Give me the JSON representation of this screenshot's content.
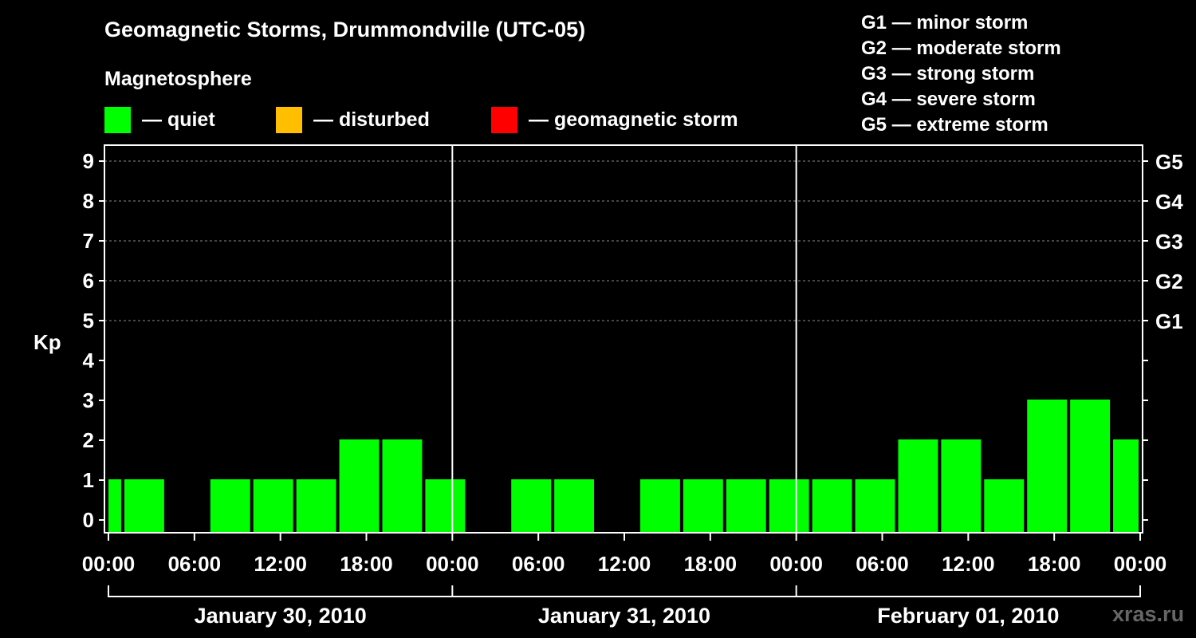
{
  "header": {
    "title": "Geomagnetic Storms, Drummondville (UTC-05)",
    "subtitle": "Magnetosphere"
  },
  "legend": {
    "quiet": {
      "label": "— quiet",
      "color": "#00ff00"
    },
    "disturbed": {
      "label": "— disturbed",
      "color": "#ffbf00"
    },
    "storm": {
      "label": "— geomagnetic storm",
      "color": "#ff0000"
    }
  },
  "storm_levels": [
    "G1 — minor storm",
    "G2 — moderate storm",
    "G3 — strong storm",
    "G4 — severe storm",
    "G5 — extreme storm"
  ],
  "watermark": "xras.ru",
  "chart_data": {
    "type": "bar",
    "title": "Geomagnetic Storms, Drummondville (UTC-05)",
    "ylabel": "Kp",
    "xlabel": "",
    "ylim": [
      0,
      9
    ],
    "y_ticks": [
      0,
      1,
      2,
      3,
      4,
      5,
      6,
      7,
      8,
      9
    ],
    "right_axis_labels": [
      {
        "y": 5,
        "label": "G1"
      },
      {
        "y": 6,
        "label": "G2"
      },
      {
        "y": 7,
        "label": "G3"
      },
      {
        "y": 8,
        "label": "G4"
      },
      {
        "y": 9,
        "label": "G5"
      }
    ],
    "grid_dashed_at": [
      5,
      6,
      7,
      8,
      9
    ],
    "x_hours_range": [
      0,
      72
    ],
    "x_ticks": [
      {
        "hour": 0,
        "label": "00:00"
      },
      {
        "hour": 6,
        "label": "06:00"
      },
      {
        "hour": 12,
        "label": "12:00"
      },
      {
        "hour": 18,
        "label": "18:00"
      },
      {
        "hour": 24,
        "label": "00:00"
      },
      {
        "hour": 30,
        "label": "06:00"
      },
      {
        "hour": 36,
        "label": "12:00"
      },
      {
        "hour": 42,
        "label": "18:00"
      },
      {
        "hour": 48,
        "label": "00:00"
      },
      {
        "hour": 54,
        "label": "06:00"
      },
      {
        "hour": 60,
        "label": "12:00"
      },
      {
        "hour": 66,
        "label": "18:00"
      },
      {
        "hour": 72,
        "label": "00:00"
      }
    ],
    "day_separators_hours": [
      24,
      48
    ],
    "days": [
      {
        "label": "January 30, 2010",
        "start": 0,
        "end": 24
      },
      {
        "label": "January 31, 2010",
        "start": 24,
        "end": 48
      },
      {
        "label": "February 01, 2010",
        "start": 48,
        "end": 72
      }
    ],
    "bars": [
      {
        "start": 0,
        "end": 1,
        "kp": 1
      },
      {
        "start": 1,
        "end": 4,
        "kp": 1
      },
      {
        "start": 4,
        "end": 7,
        "kp": 0
      },
      {
        "start": 7,
        "end": 10,
        "kp": 1
      },
      {
        "start": 10,
        "end": 13,
        "kp": 1
      },
      {
        "start": 13,
        "end": 16,
        "kp": 1
      },
      {
        "start": 16,
        "end": 19,
        "kp": 2
      },
      {
        "start": 19,
        "end": 22,
        "kp": 2
      },
      {
        "start": 22,
        "end": 25,
        "kp": 1
      },
      {
        "start": 25,
        "end": 28,
        "kp": 0
      },
      {
        "start": 28,
        "end": 31,
        "kp": 1
      },
      {
        "start": 31,
        "end": 34,
        "kp": 1
      },
      {
        "start": 34,
        "end": 37,
        "kp": 0
      },
      {
        "start": 37,
        "end": 40,
        "kp": 1
      },
      {
        "start": 40,
        "end": 43,
        "kp": 1
      },
      {
        "start": 43,
        "end": 46,
        "kp": 1
      },
      {
        "start": 46,
        "end": 49,
        "kp": 1
      },
      {
        "start": 49,
        "end": 52,
        "kp": 1
      },
      {
        "start": 52,
        "end": 55,
        "kp": 1
      },
      {
        "start": 55,
        "end": 58,
        "kp": 2
      },
      {
        "start": 58,
        "end": 61,
        "kp": 2
      },
      {
        "start": 61,
        "end": 64,
        "kp": 1
      },
      {
        "start": 64,
        "end": 67,
        "kp": 3
      },
      {
        "start": 67,
        "end": 70,
        "kp": 3
      },
      {
        "start": 70,
        "end": 72,
        "kp": 2
      }
    ],
    "bar_color": "#00ff00"
  }
}
